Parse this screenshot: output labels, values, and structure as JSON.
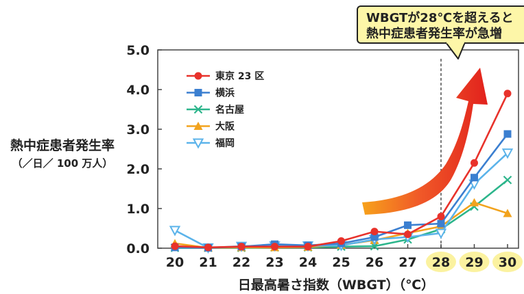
{
  "chart_data": {
    "type": "line",
    "ylabel": "熱中症患者発生率",
    "ylabel_unit": "（／日／ 100 万人）",
    "xlabel": "日最高暑さ指数（WBGT）（℃）",
    "x": [
      20,
      21,
      22,
      23,
      24,
      25,
      26,
      27,
      28,
      29,
      30
    ],
    "highlight_x": [
      28,
      29,
      30
    ],
    "ylim": [
      0,
      5
    ],
    "yticks": [
      "0.0",
      "1.0",
      "2.0",
      "3.0",
      "4.0",
      "5.0"
    ],
    "threshold_x": 28,
    "annotation": {
      "line1": "WBGTが28℃を超えると",
      "line2": "熱中症患者発生率が急増"
    },
    "legend_position": "top-left",
    "series": [
      {
        "name": "東京 23 区",
        "color": "#e8322b",
        "marker": "circle",
        "filled": true,
        "values": [
          0.05,
          0.02,
          0.04,
          0.04,
          0.04,
          0.18,
          0.42,
          0.35,
          0.8,
          2.15,
          3.9
        ]
      },
      {
        "name": "横浜",
        "color": "#3b7fd0",
        "marker": "square",
        "filled": true,
        "values": [
          0.02,
          0.01,
          0.04,
          0.1,
          0.07,
          0.12,
          0.28,
          0.58,
          0.62,
          1.78,
          2.88
        ]
      },
      {
        "name": "名古屋",
        "color": "#2cb58b",
        "marker": "x",
        "filled": false,
        "values": [
          0.01,
          0.01,
          0.01,
          0.02,
          0.02,
          0.04,
          0.05,
          0.22,
          0.48,
          1.05,
          1.72
        ]
      },
      {
        "name": "大阪",
        "color": "#f2a31d",
        "marker": "triangle",
        "filled": true,
        "values": [
          0.12,
          0.01,
          0.02,
          0.02,
          0.03,
          0.08,
          0.2,
          0.38,
          0.55,
          1.15,
          0.88
        ]
      },
      {
        "name": "福岡",
        "color": "#5bb3ea",
        "marker": "triangle-down",
        "filled": false,
        "values": [
          0.45,
          0.01,
          0.05,
          0.06,
          0.06,
          0.07,
          0.22,
          0.28,
          0.38,
          1.62,
          2.4
        ]
      }
    ]
  }
}
